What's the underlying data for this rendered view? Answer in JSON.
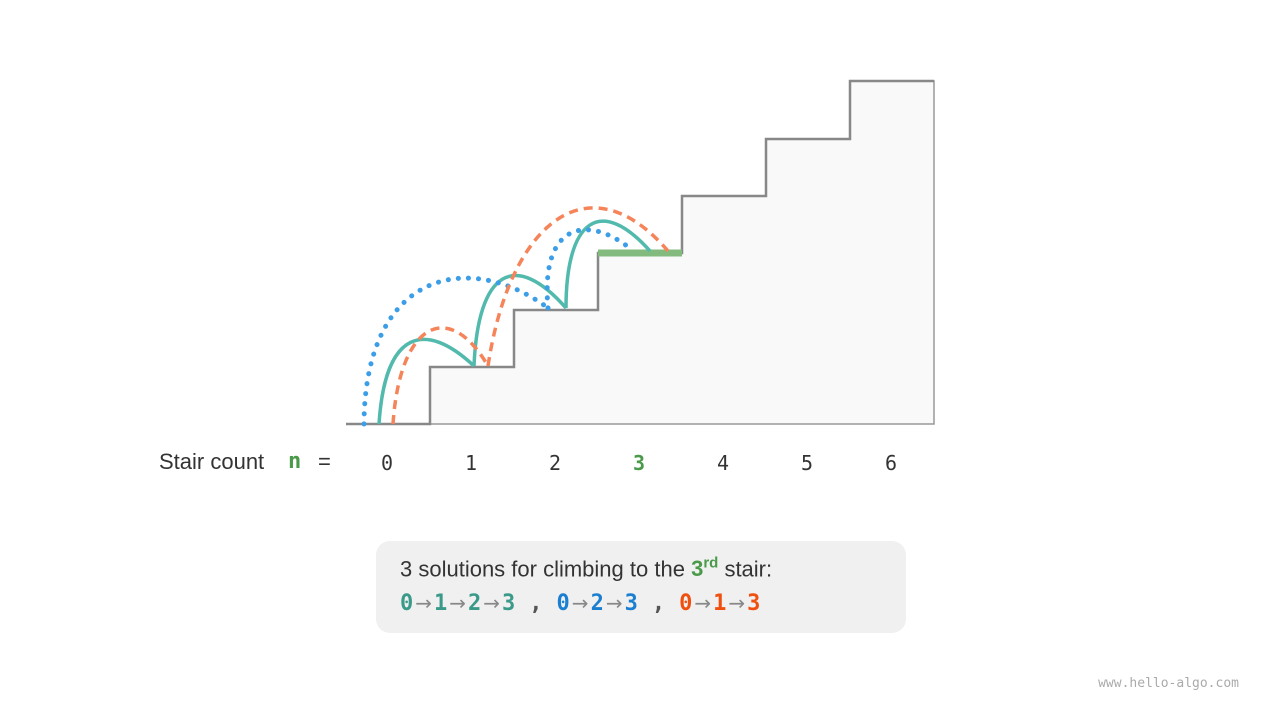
{
  "label": {
    "text": "Stair count",
    "var": "n",
    "eq": "="
  },
  "stairs": [
    "0",
    "1",
    "2",
    "3",
    "4",
    "5",
    "6"
  ],
  "highlight_stair": "3",
  "colors": {
    "teal": "#52b9ad",
    "blue": "#3d9ee8",
    "orange": "#f5845a",
    "highlight": "#83bb7f"
  },
  "caption": {
    "prefix": "3 solutions for climbing to the",
    "num": "3",
    "sup": "rd",
    "suffix": "stair:",
    "paths": [
      {
        "color": "#3a9a8a",
        "steps": [
          "0",
          "1",
          "2",
          "3"
        ]
      },
      {
        "color": "#1a7fd0",
        "steps": [
          "0",
          "2",
          "3"
        ]
      },
      {
        "color": "#f0500f",
        "steps": [
          "0",
          "1",
          "3"
        ]
      }
    ],
    "arrow": "→",
    "sep": ","
  },
  "watermark": "www.hello-algo.com"
}
